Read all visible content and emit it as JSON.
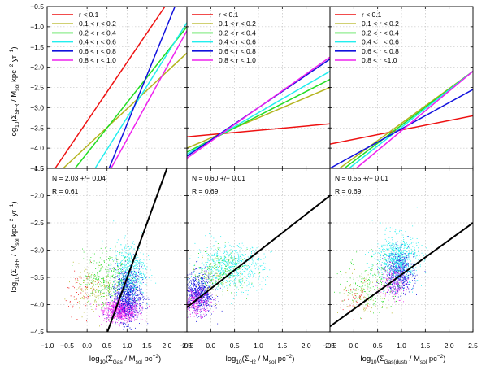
{
  "chart_data": {
    "type": "scatter",
    "xlim": [
      -1.0,
      2.5
    ],
    "ylim_top": [
      -4.5,
      -0.5
    ],
    "ylim_bottom": [
      -4.5,
      -1.5
    ],
    "grid": true,
    "x_ticks_labeled": [
      "−1.0",
      "−0.5",
      "0.0",
      "0.5",
      "1.0",
      "1.5",
      "2.0",
      "2.5"
    ],
    "x_ticks_short": [
      "−0.5",
      "0.0",
      "0.5",
      "1.0",
      "1.5",
      "2.0",
      "2.5"
    ],
    "y_ticks_top": [
      "−0.5",
      "−1.0",
      "−1.5",
      "−2.0",
      "−2.5",
      "−3.0",
      "−3.5",
      "−4.0",
      "−4.5"
    ],
    "y_ticks_bottom": [
      "−1.5",
      "−2.0",
      "−2.5",
      "−3.0",
      "−3.5",
      "−4.0",
      "−4.5"
    ],
    "ylabel": {
      "pre": "log",
      "pre_sub": "10",
      "mid": "(Σ",
      "mid_sub": "SFR",
      "post": " / M",
      "post_sub": "sol",
      "unit": " kpc",
      "unit_sup": "−2",
      "tail": " yr",
      "tail_sup": "−1",
      "close": ")"
    },
    "xlabels": [
      {
        "pre": "log",
        "pre_sub": "10",
        "mid": "(Σ",
        "mid_sub": "Gas",
        "post": " / M",
        "post_sub": "sol",
        "unit": " pc",
        "unit_sup": "−2",
        "close": ")"
      },
      {
        "pre": "log",
        "pre_sub": "10",
        "mid": "(Σ",
        "mid_sub": "H2",
        "post": " / M",
        "post_sub": "sol",
        "unit": " pc",
        "unit_sup": "−2",
        "close": ")"
      },
      {
        "pre": "log",
        "pre_sub": "10",
        "mid": "(Σ",
        "mid_sub": "Gas(dust)",
        "post": " / M",
        "post_sub": "sol",
        "unit": " pc",
        "unit_sup": "−2",
        "close": ")"
      }
    ],
    "legend_labels": [
      {
        "label": "r < 0.1",
        "color": "#ee1111"
      },
      {
        "label": "0.1 < r < 0.2",
        "color": "#b4b41e"
      },
      {
        "label": "0.2 < r < 0.4",
        "color": "#22dd22"
      },
      {
        "label": "0.4 < r < 0.6",
        "color": "#22eeee"
      },
      {
        "label": "0.6 < r < 0.8",
        "color": "#1111dd"
      },
      {
        "label": "0.8 < r < 1.0",
        "color": "#ee22ee"
      }
    ],
    "legend_labels_alt3": "0.8 < r <1.0",
    "radial_fits": [
      [
        {
          "x": [
            -0.8,
            1.95
          ],
          "y": [
            -4.5,
            -0.5
          ]
        },
        {
          "x": [
            -0.6,
            2.5
          ],
          "y": [
            -4.5,
            -1.65
          ]
        },
        {
          "x": [
            -0.3,
            2.5
          ],
          "y": [
            -4.5,
            -1.0
          ]
        },
        {
          "x": [
            0.2,
            2.5
          ],
          "y": [
            -4.5,
            -0.9
          ]
        },
        {
          "x": [
            0.55,
            2.2
          ],
          "y": [
            -4.5,
            -0.5
          ]
        },
        {
          "x": [
            0.6,
            2.5
          ],
          "y": [
            -4.5,
            -1.1
          ]
        }
      ],
      [
        {
          "x": [
            -0.5,
            2.5
          ],
          "y": [
            -3.72,
            -3.4
          ]
        },
        {
          "x": [
            -0.5,
            2.5
          ],
          "y": [
            -4.0,
            -2.5
          ]
        },
        {
          "x": [
            -0.5,
            2.5
          ],
          "y": [
            -4.1,
            -2.3
          ]
        },
        {
          "x": [
            -0.5,
            2.5
          ],
          "y": [
            -4.15,
            -2.1
          ]
        },
        {
          "x": [
            -0.5,
            2.5
          ],
          "y": [
            -4.2,
            -1.8
          ]
        },
        {
          "x": [
            -0.5,
            2.5
          ],
          "y": [
            -4.25,
            -1.75
          ]
        }
      ],
      [
        {
          "x": [
            -0.5,
            2.5
          ],
          "y": [
            -3.9,
            -3.2
          ]
        },
        {
          "x": [
            -0.3,
            2.5
          ],
          "y": [
            -4.5,
            -2.1
          ]
        },
        {
          "x": [
            -0.2,
            2.5
          ],
          "y": [
            -4.5,
            -2.1
          ]
        },
        {
          "x": [
            -0.1,
            2.5
          ],
          "y": [
            -4.5,
            -2.1
          ]
        },
        {
          "x": [
            -0.5,
            2.5
          ],
          "y": [
            -4.5,
            -2.55
          ]
        },
        {
          "x": [
            0.05,
            2.5
          ],
          "y": [
            -4.5,
            -2.1
          ]
        }
      ]
    ],
    "global_fits": [
      {
        "x": [
          0.51,
          2.0
        ],
        "y": [
          -4.5,
          -1.5
        ]
      },
      {
        "x": [
          -0.5,
          2.5
        ],
        "y": [
          -4.05,
          -2.0
        ]
      },
      {
        "x": [
          -0.5,
          2.5
        ],
        "y": [
          -4.4,
          -2.5
        ]
      }
    ],
    "annotations": [
      {
        "n": "N = 2.03 +/− 0.04",
        "r": "R = 0.61"
      },
      {
        "n": "N = 0.60 +/− 0.01",
        "r": "R = 0.69"
      },
      {
        "n": "N = 0.55 +/− 0.01",
        "r": "R = 0.69"
      }
    ],
    "scatter_clusters": [
      [
        {
          "color": "#ee22ee",
          "count": 900,
          "cx": 0.85,
          "cy": -4.1,
          "sx": 0.22,
          "sy": 0.1
        },
        {
          "color": "#1111dd",
          "count": 900,
          "cx": 1.0,
          "cy": -3.8,
          "sx": 0.18,
          "sy": 0.25
        },
        {
          "color": "#22eeee",
          "count": 500,
          "cx": 1.05,
          "cy": -3.35,
          "sx": 0.2,
          "sy": 0.25
        },
        {
          "color": "#22dd22",
          "count": 300,
          "cx": 0.5,
          "cy": -3.5,
          "sx": 0.3,
          "sy": 0.25
        },
        {
          "color": "#b4b41e",
          "count": 150,
          "cx": 0.15,
          "cy": -3.7,
          "sx": 0.25,
          "sy": 0.22
        },
        {
          "color": "#ee1111",
          "count": 60,
          "cx": -0.1,
          "cy": -3.75,
          "sx": 0.22,
          "sy": 0.2
        }
      ],
      [
        {
          "color": "#1111dd",
          "count": 700,
          "cx": -0.25,
          "cy": -3.8,
          "sx": 0.15,
          "sy": 0.18
        },
        {
          "color": "#ee22ee",
          "count": 250,
          "cx": -0.3,
          "cy": -3.95,
          "sx": 0.15,
          "sy": 0.12
        },
        {
          "color": "#22eeee",
          "count": 700,
          "cx": 0.4,
          "cy": -3.3,
          "sx": 0.35,
          "sy": 0.2
        },
        {
          "color": "#22dd22",
          "count": 200,
          "cx": 0.2,
          "cy": -3.4,
          "sx": 0.3,
          "sy": 0.2
        },
        {
          "color": "#b4b41e",
          "count": 80,
          "cx": 0.1,
          "cy": -3.5,
          "sx": 0.25,
          "sy": 0.2
        }
      ],
      [
        {
          "color": "#1111dd",
          "count": 600,
          "cx": 0.95,
          "cy": -3.4,
          "sx": 0.15,
          "sy": 0.2
        },
        {
          "color": "#22eeee",
          "count": 700,
          "cx": 0.9,
          "cy": -3.15,
          "sx": 0.22,
          "sy": 0.22
        },
        {
          "color": "#ee22ee",
          "count": 200,
          "cx": 0.8,
          "cy": -3.6,
          "sx": 0.15,
          "sy": 0.15
        },
        {
          "color": "#22dd22",
          "count": 200,
          "cx": 0.4,
          "cy": -3.6,
          "sx": 0.3,
          "sy": 0.25
        },
        {
          "color": "#b4b41e",
          "count": 100,
          "cx": 0.2,
          "cy": -3.8,
          "sx": 0.25,
          "sy": 0.2
        },
        {
          "color": "#ee1111",
          "count": 40,
          "cx": 0.05,
          "cy": -3.9,
          "sx": 0.2,
          "sy": 0.15
        }
      ]
    ]
  }
}
